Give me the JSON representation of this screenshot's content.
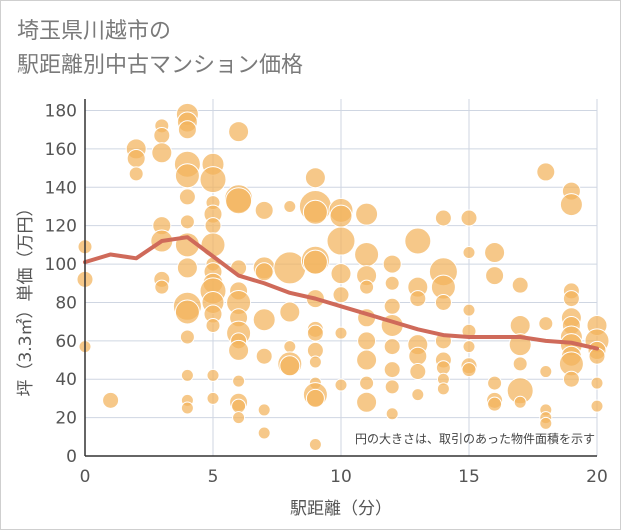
{
  "title": {
    "line1": "埼玉県川越市の",
    "line2": "駅距離別中古マンション価格"
  },
  "chart_data": {
    "type": "scatter",
    "xlabel": "駅距離（分）",
    "ylabel": "坪（3.3㎡）単価（万円）",
    "xlim": [
      0,
      20
    ],
    "ylim": [
      0,
      186
    ],
    "x_ticks": [
      "0",
      "5",
      "10",
      "15",
      "20"
    ],
    "y_ticks": [
      "0",
      "20",
      "40",
      "60",
      "80",
      "100",
      "120",
      "140",
      "160",
      "180"
    ],
    "grid": true,
    "note": "円の大きさは、取引のあった物件面積を示す",
    "colors": {
      "bubble": "#f3b35b",
      "bubble_stroke": "#ffffff",
      "trend": "#cf6a5a",
      "grid": "#cfd6e2",
      "axis": "#333333"
    },
    "series": [
      {
        "type": "scatter",
        "points": [
          [
            0,
            109,
            7
          ],
          [
            0,
            92,
            8
          ],
          [
            0,
            57,
            6
          ],
          [
            1,
            29,
            8
          ],
          [
            2,
            160,
            10
          ],
          [
            2,
            155,
            9
          ],
          [
            2,
            147,
            7
          ],
          [
            3,
            172,
            7
          ],
          [
            3,
            167,
            8
          ],
          [
            3,
            158,
            10
          ],
          [
            3,
            120,
            9
          ],
          [
            3,
            112,
            11
          ],
          [
            3,
            92,
            8
          ],
          [
            3,
            88,
            7
          ],
          [
            4,
            178,
            11
          ],
          [
            4,
            174,
            10
          ],
          [
            4,
            170,
            9
          ],
          [
            4,
            152,
            13
          ],
          [
            4,
            146,
            12
          ],
          [
            4,
            135,
            8
          ],
          [
            4,
            122,
            7
          ],
          [
            4,
            110,
            12
          ],
          [
            4,
            98,
            10
          ],
          [
            4,
            78,
            14
          ],
          [
            4,
            75,
            12
          ],
          [
            4,
            62,
            7
          ],
          [
            4,
            42,
            6
          ],
          [
            4,
            29,
            6
          ],
          [
            4,
            25,
            6
          ],
          [
            5,
            152,
            11
          ],
          [
            5,
            144,
            13
          ],
          [
            5,
            132,
            7
          ],
          [
            5,
            126,
            9
          ],
          [
            5,
            120,
            8
          ],
          [
            5,
            110,
            12
          ],
          [
            5,
            100,
            7
          ],
          [
            5,
            96,
            9
          ],
          [
            5,
            90,
            10
          ],
          [
            5,
            86,
            13
          ],
          [
            5,
            80,
            11
          ],
          [
            5,
            74,
            9
          ],
          [
            5,
            68,
            7
          ],
          [
            5,
            42,
            6
          ],
          [
            5,
            30,
            6
          ],
          [
            6,
            169,
            10
          ],
          [
            6,
            134,
            14
          ],
          [
            6,
            133,
            13
          ],
          [
            6,
            98,
            8
          ],
          [
            6,
            86,
            9
          ],
          [
            6,
            80,
            12
          ],
          [
            6,
            72,
            9
          ],
          [
            6,
            64,
            12
          ],
          [
            6,
            60,
            8
          ],
          [
            6,
            55,
            10
          ],
          [
            6,
            39,
            6
          ],
          [
            6,
            28,
            9
          ],
          [
            6,
            26,
            7
          ],
          [
            6,
            20,
            6
          ],
          [
            7,
            128,
            9
          ],
          [
            7,
            98,
            11
          ],
          [
            7,
            96,
            9
          ],
          [
            7,
            71,
            11
          ],
          [
            7,
            52,
            8
          ],
          [
            7,
            24,
            6
          ],
          [
            7,
            12,
            6
          ],
          [
            8,
            130,
            6
          ],
          [
            8,
            98,
            16
          ],
          [
            8,
            75,
            10
          ],
          [
            8,
            57,
            6
          ],
          [
            8,
            48,
            12
          ],
          [
            8,
            47,
            10
          ],
          [
            9,
            145,
            10
          ],
          [
            9,
            130,
            16
          ],
          [
            9,
            127,
            12
          ],
          [
            9,
            102,
            14
          ],
          [
            9,
            101,
            12
          ],
          [
            9,
            82,
            9
          ],
          [
            9,
            66,
            8
          ],
          [
            9,
            64,
            8
          ],
          [
            9,
            55,
            8
          ],
          [
            9,
            49,
            6
          ],
          [
            9,
            38,
            6
          ],
          [
            9,
            32,
            12
          ],
          [
            9,
            30,
            9
          ],
          [
            9,
            6,
            6
          ],
          [
            10,
            128,
            12
          ],
          [
            10,
            125,
            11
          ],
          [
            10,
            112,
            14
          ],
          [
            10,
            95,
            10
          ],
          [
            10,
            84,
            8
          ],
          [
            10,
            64,
            6
          ],
          [
            10,
            37,
            6
          ],
          [
            11,
            126,
            11
          ],
          [
            11,
            105,
            12
          ],
          [
            11,
            94,
            10
          ],
          [
            11,
            88,
            7
          ],
          [
            11,
            72,
            9
          ],
          [
            11,
            60,
            9
          ],
          [
            11,
            50,
            10
          ],
          [
            11,
            38,
            7
          ],
          [
            11,
            28,
            10
          ],
          [
            12,
            100,
            9
          ],
          [
            12,
            90,
            7
          ],
          [
            12,
            78,
            8
          ],
          [
            12,
            68,
            11
          ],
          [
            12,
            57,
            8
          ],
          [
            12,
            45,
            8
          ],
          [
            12,
            36,
            7
          ],
          [
            12,
            22,
            6
          ],
          [
            13,
            112,
            13
          ],
          [
            13,
            88,
            10
          ],
          [
            13,
            82,
            8
          ],
          [
            13,
            58,
            10
          ],
          [
            13,
            52,
            9
          ],
          [
            13,
            44,
            8
          ],
          [
            13,
            32,
            6
          ],
          [
            14,
            124,
            8
          ],
          [
            14,
            96,
            14
          ],
          [
            14,
            88,
            12
          ],
          [
            14,
            80,
            8
          ],
          [
            14,
            60,
            8
          ],
          [
            14,
            50,
            8
          ],
          [
            14,
            46,
            7
          ],
          [
            14,
            40,
            6
          ],
          [
            14,
            35,
            6
          ],
          [
            15,
            124,
            8
          ],
          [
            15,
            106,
            6
          ],
          [
            15,
            76,
            6
          ],
          [
            15,
            65,
            7
          ],
          [
            15,
            57,
            6
          ],
          [
            15,
            47,
            8
          ],
          [
            15,
            45,
            7
          ],
          [
            16,
            106,
            10
          ],
          [
            16,
            94,
            9
          ],
          [
            16,
            38,
            7
          ],
          [
            16,
            29,
            8
          ],
          [
            16,
            27,
            7
          ],
          [
            17,
            89,
            8
          ],
          [
            17,
            68,
            10
          ],
          [
            17,
            58,
            11
          ],
          [
            17,
            48,
            7
          ],
          [
            17,
            34,
            13
          ],
          [
            17,
            28,
            6
          ],
          [
            18,
            148,
            9
          ],
          [
            18,
            69,
            7
          ],
          [
            18,
            44,
            6
          ],
          [
            18,
            24,
            6
          ],
          [
            18,
            20,
            6
          ],
          [
            18,
            17,
            6
          ],
          [
            19,
            138,
            9
          ],
          [
            19,
            131,
            11
          ],
          [
            19,
            86,
            8
          ],
          [
            19,
            82,
            8
          ],
          [
            19,
            72,
            10
          ],
          [
            19,
            68,
            9
          ],
          [
            19,
            62,
            11
          ],
          [
            19,
            58,
            11
          ],
          [
            19,
            52,
            10
          ],
          [
            19,
            48,
            12
          ],
          [
            19,
            40,
            8
          ],
          [
            20,
            68,
            10
          ],
          [
            20,
            60,
            12
          ],
          [
            20,
            55,
            9
          ],
          [
            20,
            52,
            8
          ],
          [
            20,
            38,
            6
          ],
          [
            20,
            26,
            6
          ]
        ]
      },
      {
        "type": "line",
        "x": [
          0,
          1,
          2,
          3,
          4,
          5,
          6,
          7,
          8,
          9,
          10,
          11,
          12,
          13,
          14,
          15,
          16,
          17,
          18,
          19,
          20
        ],
        "y": [
          101,
          105,
          103,
          112,
          114,
          104,
          94,
          90,
          85,
          82,
          78,
          74,
          70,
          66,
          63,
          62,
          62,
          62,
          60,
          59,
          56
        ]
      }
    ]
  }
}
